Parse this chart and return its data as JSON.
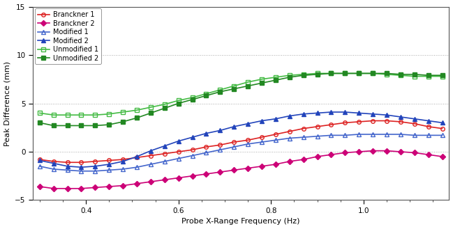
{
  "title": "",
  "xlabel": "Probe X-Range Frequency (Hz)",
  "ylabel": "Peak Difference (mm)",
  "xlim": [
    0.285,
    1.185
  ],
  "ylim": [
    -5,
    15
  ],
  "yticks": [
    -5,
    0,
    5,
    10,
    15
  ],
  "xticks": [
    0.4,
    0.6,
    0.8,
    1.0
  ],
  "series": [
    {
      "label": "Branckner 1",
      "color": "#dd2222",
      "marker": "o",
      "fillstyle": "none",
      "x": [
        0.3,
        0.33,
        0.36,
        0.39,
        0.42,
        0.45,
        0.48,
        0.51,
        0.54,
        0.57,
        0.6,
        0.63,
        0.66,
        0.69,
        0.72,
        0.75,
        0.78,
        0.81,
        0.84,
        0.87,
        0.9,
        0.93,
        0.96,
        0.99,
        1.02,
        1.05,
        1.08,
        1.11,
        1.14,
        1.17
      ],
      "y": [
        -0.8,
        -1.0,
        -1.1,
        -1.1,
        -1.0,
        -0.9,
        -0.8,
        -0.6,
        -0.4,
        -0.2,
        0.0,
        0.2,
        0.5,
        0.7,
        1.0,
        1.2,
        1.5,
        1.8,
        2.1,
        2.4,
        2.6,
        2.8,
        3.0,
        3.1,
        3.2,
        3.2,
        3.1,
        2.9,
        2.6,
        2.4
      ]
    },
    {
      "label": "Branckner 2",
      "color": "#cc0077",
      "marker": "D",
      "fillstyle": "full",
      "x": [
        0.3,
        0.33,
        0.36,
        0.39,
        0.42,
        0.45,
        0.48,
        0.51,
        0.54,
        0.57,
        0.6,
        0.63,
        0.66,
        0.69,
        0.72,
        0.75,
        0.78,
        0.81,
        0.84,
        0.87,
        0.9,
        0.93,
        0.96,
        0.99,
        1.02,
        1.05,
        1.08,
        1.11,
        1.14,
        1.17
      ],
      "y": [
        -3.6,
        -3.8,
        -3.8,
        -3.8,
        -3.7,
        -3.6,
        -3.5,
        -3.3,
        -3.1,
        -2.9,
        -2.7,
        -2.5,
        -2.3,
        -2.1,
        -1.9,
        -1.7,
        -1.5,
        -1.3,
        -1.0,
        -0.8,
        -0.5,
        -0.3,
        -0.1,
        0.0,
        0.1,
        0.1,
        0.0,
        -0.1,
        -0.3,
        -0.5
      ]
    },
    {
      "label": "Modified 1",
      "color": "#4466cc",
      "marker": "^",
      "fillstyle": "none",
      "x": [
        0.3,
        0.33,
        0.36,
        0.39,
        0.42,
        0.45,
        0.48,
        0.51,
        0.54,
        0.57,
        0.6,
        0.63,
        0.66,
        0.69,
        0.72,
        0.75,
        0.78,
        0.81,
        0.84,
        0.87,
        0.9,
        0.93,
        0.96,
        0.99,
        1.02,
        1.05,
        1.08,
        1.11,
        1.14,
        1.17
      ],
      "y": [
        -1.5,
        -1.8,
        -1.9,
        -2.0,
        -2.0,
        -1.9,
        -1.8,
        -1.6,
        -1.3,
        -1.0,
        -0.7,
        -0.4,
        -0.1,
        0.2,
        0.5,
        0.8,
        1.0,
        1.2,
        1.4,
        1.5,
        1.6,
        1.7,
        1.7,
        1.8,
        1.8,
        1.8,
        1.8,
        1.7,
        1.7,
        1.7
      ]
    },
    {
      "label": "Modified 2",
      "color": "#2244bb",
      "marker": "^",
      "fillstyle": "full",
      "x": [
        0.3,
        0.33,
        0.36,
        0.39,
        0.42,
        0.45,
        0.48,
        0.51,
        0.54,
        0.57,
        0.6,
        0.63,
        0.66,
        0.69,
        0.72,
        0.75,
        0.78,
        0.81,
        0.84,
        0.87,
        0.9,
        0.93,
        0.96,
        0.99,
        1.02,
        1.05,
        1.08,
        1.11,
        1.14,
        1.17
      ],
      "y": [
        -0.9,
        -1.2,
        -1.5,
        -1.6,
        -1.5,
        -1.3,
        -1.0,
        -0.5,
        0.1,
        0.6,
        1.1,
        1.5,
        1.9,
        2.2,
        2.6,
        2.9,
        3.2,
        3.4,
        3.7,
        3.9,
        4.0,
        4.1,
        4.1,
        4.0,
        3.9,
        3.8,
        3.6,
        3.4,
        3.2,
        3.0
      ]
    },
    {
      "label": "Unmodified 1",
      "color": "#44bb44",
      "marker": "s",
      "fillstyle": "none",
      "x": [
        0.3,
        0.33,
        0.36,
        0.39,
        0.42,
        0.45,
        0.48,
        0.51,
        0.54,
        0.57,
        0.6,
        0.63,
        0.66,
        0.69,
        0.72,
        0.75,
        0.78,
        0.81,
        0.84,
        0.87,
        0.9,
        0.93,
        0.96,
        0.99,
        1.02,
        1.05,
        1.08,
        1.11,
        1.14,
        1.17
      ],
      "y": [
        4.0,
        3.8,
        3.8,
        3.8,
        3.8,
        3.9,
        4.1,
        4.3,
        4.6,
        4.9,
        5.3,
        5.6,
        6.0,
        6.4,
        6.8,
        7.2,
        7.5,
        7.7,
        7.9,
        8.0,
        8.1,
        8.1,
        8.1,
        8.1,
        8.1,
        8.0,
        7.9,
        7.8,
        7.8,
        7.8
      ]
    },
    {
      "label": "Unmodified 2",
      "color": "#228822",
      "marker": "s",
      "fillstyle": "full",
      "x": [
        0.3,
        0.33,
        0.36,
        0.39,
        0.42,
        0.45,
        0.48,
        0.51,
        0.54,
        0.57,
        0.6,
        0.63,
        0.66,
        0.69,
        0.72,
        0.75,
        0.78,
        0.81,
        0.84,
        0.87,
        0.9,
        0.93,
        0.96,
        0.99,
        1.02,
        1.05,
        1.08,
        1.11,
        1.14,
        1.17
      ],
      "y": [
        3.0,
        2.7,
        2.7,
        2.7,
        2.7,
        2.8,
        3.1,
        3.5,
        4.0,
        4.5,
        5.0,
        5.4,
        5.8,
        6.2,
        6.5,
        6.8,
        7.1,
        7.4,
        7.7,
        7.9,
        8.0,
        8.1,
        8.1,
        8.1,
        8.1,
        8.1,
        8.0,
        8.0,
        7.9,
        7.9
      ]
    }
  ],
  "background_color": "#ffffff",
  "plot_bg_color": "#ffffff",
  "grid_color": "#aaaaaa",
  "legend_fontsize": 7,
  "axis_fontsize": 8,
  "tick_fontsize": 7.5,
  "linewidth": 1.2,
  "markersize": 4
}
